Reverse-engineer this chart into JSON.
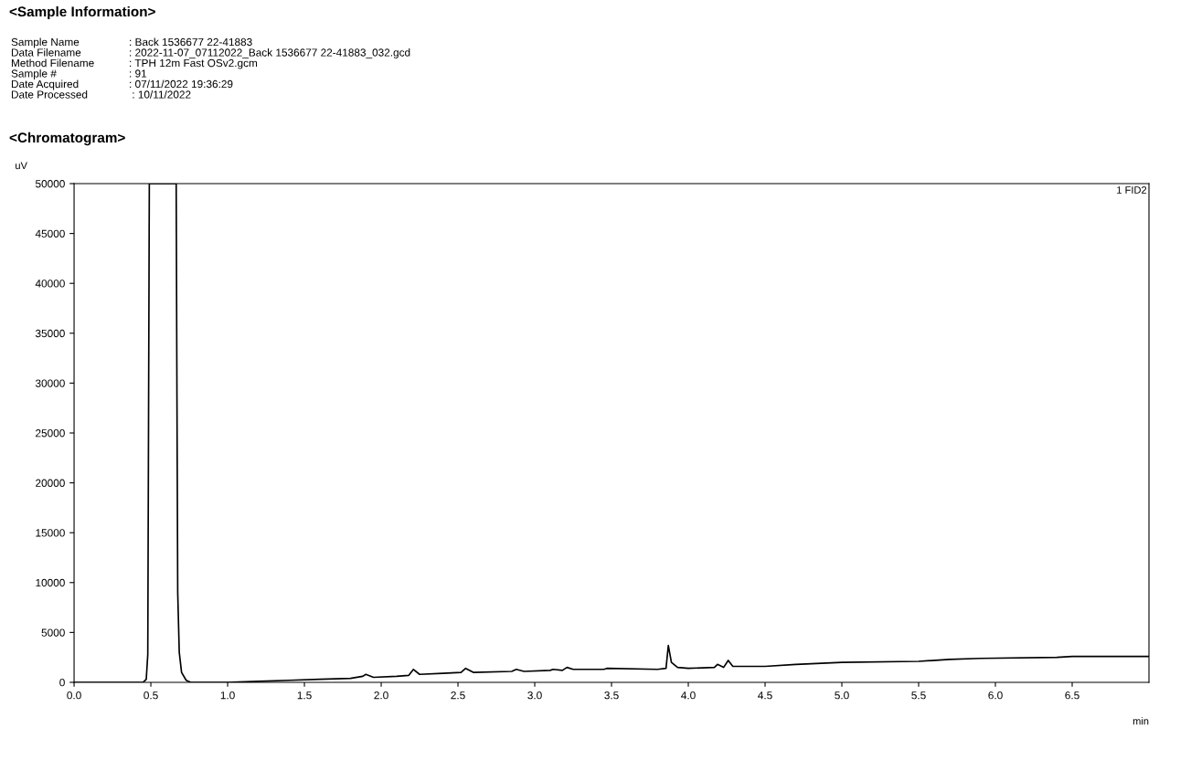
{
  "chart_data": {
    "type": "line",
    "title": "<Sample Information>",
    "subtitle": "<Chromatogram>",
    "xlabel": "min",
    "ylabel": "uV",
    "annotations": [
      "Sample Name",
      ": Back 1536677 22-41883",
      "Data Filename",
      ": 2022-11-07_07112022_Back 1536677 22-41883_032.gcd",
      "Method Filename",
      ": TPH 12m Fast OSv2.gcm",
      "Sample #",
      ": 91",
      "Date Acquired",
      ": 07/11/2022 19:36:29",
      "Date Processed",
      " : 10/11/2022",
      "1 FID2"
    ],
    "series": [
      {
        "color": "#000000",
        "x": [
          0,
          0.45,
          0.47,
          0.48,
          0.49,
          0.665,
          0.67,
          0.675,
          0.685,
          0.7,
          0.73,
          0.76,
          1.0,
          1.2,
          1.4,
          1.6,
          1.8,
          1.88,
          1.9,
          1.95,
          2.1,
          2.18,
          2.21,
          2.25,
          2.4,
          2.52,
          2.55,
          2.6,
          2.85,
          2.88,
          2.93,
          3.1,
          3.12,
          3.18,
          3.21,
          3.25,
          3.45,
          3.47,
          3.8,
          3.855,
          3.87,
          3.89,
          3.93,
          4.0,
          4.17,
          4.19,
          4.23,
          4.26,
          4.29,
          4.5,
          4.7,
          5.0,
          5.5,
          5.7,
          5.9,
          6.4,
          6.5,
          7.0
        ],
        "values": [
          0,
          0,
          300,
          2800,
          50000,
          50000,
          28500,
          9000,
          3000,
          1000,
          200,
          0,
          0,
          100,
          200,
          300,
          400,
          600,
          800,
          500,
          600,
          700,
          1300,
          800,
          900,
          1000,
          1400,
          1000,
          1100,
          1300,
          1100,
          1200,
          1300,
          1200,
          1500,
          1300,
          1300,
          1400,
          1300,
          1400,
          3700,
          2000,
          1500,
          1400,
          1500,
          1800,
          1500,
          2200,
          1600,
          1600,
          1800,
          2000,
          2100,
          2300,
          2400,
          2500,
          2600,
          2600
        ]
      }
    ],
    "xlim": [
      0,
      7
    ],
    "ylim": [
      0,
      50000
    ],
    "xticks": [
      {
        "value": 0,
        "label": "0.0"
      },
      {
        "value": 0.5,
        "label": "0.5"
      },
      {
        "value": 1,
        "label": "1.0"
      },
      {
        "value": 1.5,
        "label": "1.5"
      },
      {
        "value": 2,
        "label": "2.0"
      },
      {
        "value": 2.5,
        "label": "2.5"
      },
      {
        "value": 3,
        "label": "3.0"
      },
      {
        "value": 3.5,
        "label": "3.5"
      },
      {
        "value": 4,
        "label": "4.0"
      },
      {
        "value": 4.5,
        "label": "4.5"
      },
      {
        "value": 5,
        "label": "5.0"
      },
      {
        "value": 5.5,
        "label": "5.5"
      },
      {
        "value": 6,
        "label": "6.0"
      },
      {
        "value": 6.5,
        "label": "6.5"
      }
    ],
    "yticks": [
      0,
      5000,
      10000,
      15000,
      20000,
      25000,
      30000,
      35000,
      40000,
      45000,
      50000
    ],
    "grid": false,
    "legend": false,
    "marker": "none",
    "line_style": "solid"
  }
}
